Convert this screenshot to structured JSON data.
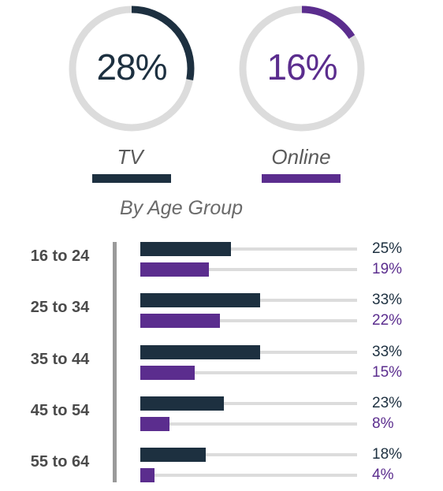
{
  "colors": {
    "tv": "#1d3040",
    "online": "#5b2d8e",
    "track": "#dcdcdc",
    "text_dark": "#1d3040"
  },
  "summary": [
    {
      "name": "TV",
      "value": 28,
      "label": "28%",
      "color": "#1d3040"
    },
    {
      "name": "Online",
      "value": 16,
      "label": "16%",
      "color": "#5b2d8e"
    }
  ],
  "subtitle": "By Age Group",
  "chart_data": {
    "type": "bar",
    "orientation": "horizontal",
    "categories": [
      "16 to 24",
      "25 to 34",
      "35 to 44",
      "45 to 54",
      "55 to 64"
    ],
    "series": [
      {
        "name": "TV",
        "values": [
          25,
          33,
          33,
          23,
          18
        ],
        "labels": [
          "25%",
          "33%",
          "33%",
          "23%",
          "18%"
        ],
        "color": "#1d3040"
      },
      {
        "name": "Online",
        "values": [
          19,
          22,
          15,
          8,
          4
        ],
        "labels": [
          "19%",
          "22%",
          "15%",
          "8%",
          "4%"
        ],
        "color": "#5b2d8e"
      }
    ],
    "xlim": [
      0,
      60
    ],
    "title": "By Age Group"
  }
}
